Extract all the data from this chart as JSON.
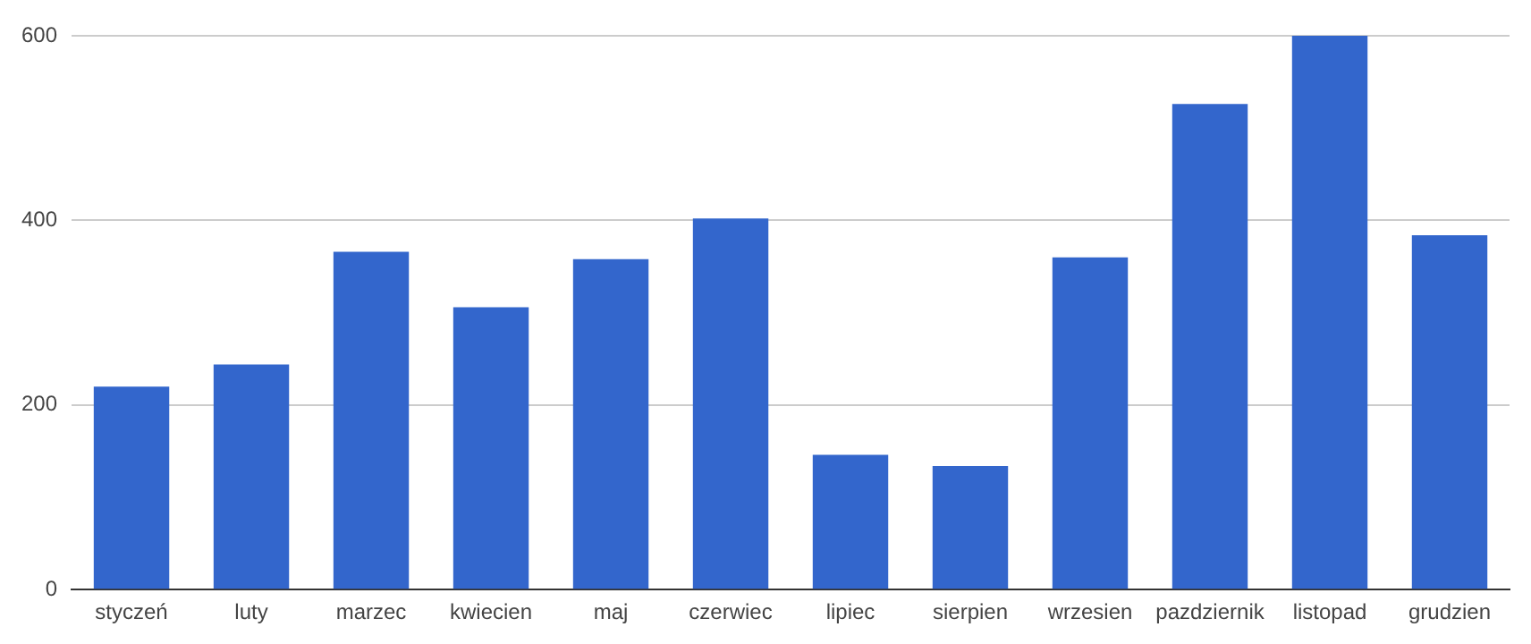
{
  "chart_data": {
    "type": "bar",
    "categories": [
      "styczeń",
      "luty",
      "marzec",
      "kwiecien",
      "maj",
      "czerwiec",
      "lipiec",
      "sierpien",
      "wrzesien",
      "pazdziernik",
      "listopad",
      "grudzien"
    ],
    "values": [
      220,
      244,
      366,
      306,
      358,
      402,
      146,
      134,
      360,
      526,
      600,
      384
    ],
    "color": "#3366cc",
    "ylim": [
      0,
      600
    ],
    "yticks": [
      0,
      200,
      400,
      600
    ],
    "grid": "y",
    "legend": false
  }
}
